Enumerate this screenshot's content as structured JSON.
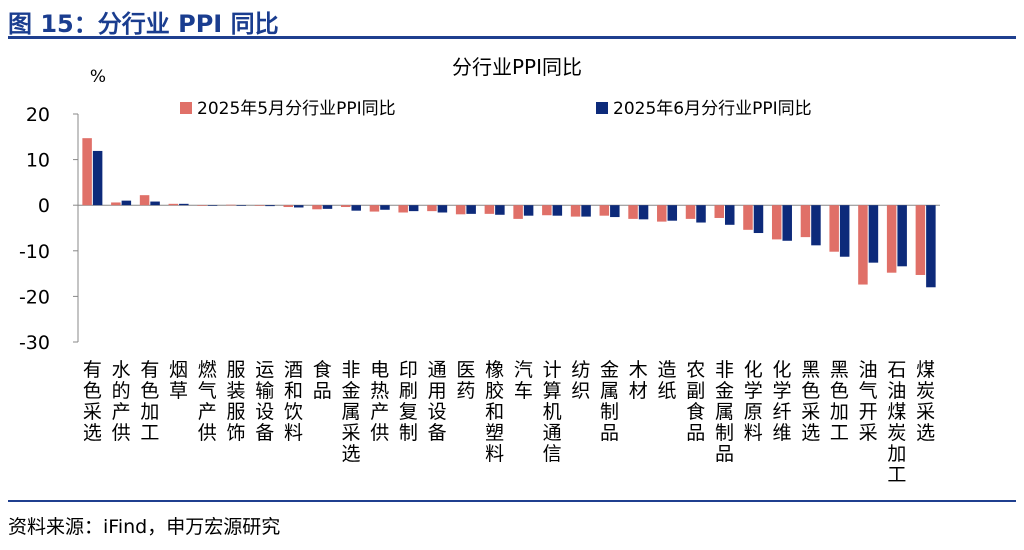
{
  "figure_title": "图 15：分行业 PPI 同比",
  "source": "资料来源：iFind，申万宏源研究",
  "chart_data": {
    "type": "bar",
    "title": "分行业PPI同比",
    "ylabel": "%",
    "ylim": [
      -30,
      20
    ],
    "yticks": [
      20,
      10,
      0,
      -10,
      -20,
      -30
    ],
    "legend_position": "top",
    "grid": false,
    "categories": [
      "有色采选",
      "水的产供",
      "有色加工",
      "烟草",
      "燃气产供",
      "服装服饰",
      "运输设备",
      "酒和饮料",
      "食品",
      "非金属采选",
      "电热产供",
      "印刷复制",
      "通用设备",
      "医药",
      "橡胶和塑料",
      "汽车",
      "计算机通信",
      "纺织",
      "金属制品",
      "木材",
      "造纸",
      "农副食品",
      "非金属制品",
      "化学原料",
      "化学纤维",
      "黑色采选",
      "黑色加工",
      "油气开采",
      "石油煤炭加工",
      "煤炭采选"
    ],
    "series": [
      {
        "name": "2025年5月分行业PPI同比",
        "color": "#e07068",
        "values": [
          14.7,
          0.6,
          2.2,
          0.3,
          0.0,
          0.1,
          -0.1,
          -0.4,
          -0.9,
          -0.4,
          -1.4,
          -1.6,
          -1.3,
          -2.0,
          -1.9,
          -3.0,
          -2.2,
          -2.5,
          -2.3,
          -3.0,
          -3.6,
          -3.0,
          -2.8,
          -5.4,
          -7.5,
          -7.0,
          -10.2,
          -17.4,
          -14.8,
          -15.3
        ]
      },
      {
        "name": "2025年6月分行业PPI同比",
        "color": "#0d2a7a",
        "values": [
          11.9,
          1.0,
          0.8,
          0.3,
          0.0,
          0.0,
          -0.2,
          -0.5,
          -0.8,
          -1.2,
          -1.0,
          -1.3,
          -1.6,
          -1.9,
          -2.1,
          -2.3,
          -2.3,
          -2.5,
          -2.6,
          -3.1,
          -3.4,
          -3.8,
          -4.3,
          -6.1,
          -7.8,
          -8.8,
          -11.3,
          -12.6,
          -13.4,
          -18.0
        ]
      }
    ]
  }
}
